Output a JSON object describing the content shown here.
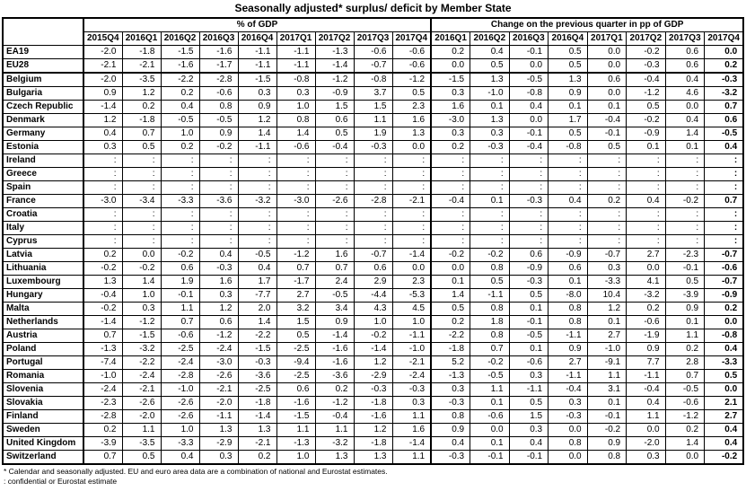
{
  "title": "Seasonally adjusted* surplus/ deficit by Member State",
  "table": {
    "corner": "",
    "groups": [
      {
        "label": "% of GDP",
        "columns": [
          "2015Q4",
          "2016Q1",
          "2016Q2",
          "2016Q3",
          "2016Q4",
          "2017Q1",
          "2017Q2",
          "2017Q3",
          "2017Q4"
        ]
      },
      {
        "label": "Change on the previous quarter in pp of GDP",
        "columns": [
          "2016Q1",
          "2016Q2",
          "2016Q3",
          "2016Q4",
          "2017Q1",
          "2017Q2",
          "2017Q3",
          "2017Q4"
        ]
      }
    ],
    "rows": [
      {
        "label": "EA19",
        "gdp": [
          "-2.0",
          "-1.8",
          "-1.5",
          "-1.6",
          "-1.1",
          "-1.1",
          "-1.3",
          "-0.6",
          "-0.6"
        ],
        "change": [
          "0.2",
          "0.4",
          "-0.1",
          "0.5",
          "0.0",
          "-0.2",
          "0.6",
          "0.0"
        ]
      },
      {
        "label": "EU28",
        "gdp": [
          "-2.1",
          "-2.1",
          "-1.6",
          "-1.7",
          "-1.1",
          "-1.1",
          "-1.4",
          "-0.7",
          "-0.6"
        ],
        "change": [
          "0.0",
          "0.5",
          "0.0",
          "0.5",
          "0.0",
          "-0.3",
          "0.6",
          "0.2"
        ]
      },
      {
        "label": "Belgium",
        "gdp": [
          "-2.0",
          "-3.5",
          "-2.2",
          "-2.8",
          "-1.5",
          "-0.8",
          "-1.2",
          "-0.8",
          "-1.2"
        ],
        "change": [
          "-1.5",
          "1.3",
          "-0.5",
          "1.3",
          "0.6",
          "-0.4",
          "0.4",
          "-0.3"
        ]
      },
      {
        "label": "Bulgaria",
        "gdp": [
          "0.9",
          "1.2",
          "0.2",
          "-0.6",
          "0.3",
          "0.3",
          "-0.9",
          "3.7",
          "0.5"
        ],
        "change": [
          "0.3",
          "-1.0",
          "-0.8",
          "0.9",
          "0.0",
          "-1.2",
          "4.6",
          "-3.2"
        ]
      },
      {
        "label": "Czech Republic",
        "gdp": [
          "-1.4",
          "0.2",
          "0.4",
          "0.8",
          "0.9",
          "1.0",
          "1.5",
          "1.5",
          "2.3"
        ],
        "change": [
          "1.6",
          "0.1",
          "0.4",
          "0.1",
          "0.1",
          "0.5",
          "0.0",
          "0.7"
        ]
      },
      {
        "label": "Denmark",
        "gdp": [
          "1.2",
          "-1.8",
          "-0.5",
          "-0.5",
          "1.2",
          "0.8",
          "0.6",
          "1.1",
          "1.6"
        ],
        "change": [
          "-3.0",
          "1.3",
          "0.0",
          "1.7",
          "-0.4",
          "-0.2",
          "0.4",
          "0.6"
        ]
      },
      {
        "label": "Germany",
        "gdp": [
          "0.4",
          "0.7",
          "1.0",
          "0.9",
          "1.4",
          "1.4",
          "0.5",
          "1.9",
          "1.3"
        ],
        "change": [
          "0.3",
          "0.3",
          "-0.1",
          "0.5",
          "-0.1",
          "-0.9",
          "1.4",
          "-0.5"
        ]
      },
      {
        "label": "Estonia",
        "gdp": [
          "0.3",
          "0.5",
          "0.2",
          "-0.2",
          "-1.1",
          "-0.6",
          "-0.4",
          "-0.3",
          "0.0"
        ],
        "change": [
          "0.2",
          "-0.3",
          "-0.4",
          "-0.8",
          "0.5",
          "0.1",
          "0.1",
          "0.4"
        ]
      },
      {
        "label": "Ireland",
        "gdp": [
          ":",
          ":",
          ":",
          ":",
          ":",
          ":",
          ":",
          ":",
          ":"
        ],
        "change": [
          ":",
          ":",
          ":",
          ":",
          ":",
          ":",
          ":",
          ":"
        ]
      },
      {
        "label": "Greece",
        "gdp": [
          ":",
          ":",
          ":",
          ":",
          ":",
          ":",
          ":",
          ":",
          ":"
        ],
        "change": [
          ":",
          ":",
          ":",
          ":",
          ":",
          ":",
          ":",
          ":"
        ]
      },
      {
        "label": "Spain",
        "gdp": [
          ":",
          ":",
          ":",
          ":",
          ":",
          ":",
          ":",
          ":",
          ":"
        ],
        "change": [
          ":",
          ":",
          ":",
          ":",
          ":",
          ":",
          ":",
          ":"
        ]
      },
      {
        "label": "France",
        "gdp": [
          "-3.0",
          "-3.4",
          "-3.3",
          "-3.6",
          "-3.2",
          "-3.0",
          "-2.6",
          "-2.8",
          "-2.1"
        ],
        "change": [
          "-0.4",
          "0.1",
          "-0.3",
          "0.4",
          "0.2",
          "0.4",
          "-0.2",
          "0.7"
        ]
      },
      {
        "label": "Croatia",
        "gdp": [
          ":",
          ":",
          ":",
          ":",
          ":",
          ":",
          ":",
          ":",
          ":"
        ],
        "change": [
          ":",
          ":",
          ":",
          ":",
          ":",
          ":",
          ":",
          ":"
        ]
      },
      {
        "label": "Italy",
        "gdp": [
          ":",
          ":",
          ":",
          ":",
          ":",
          ":",
          ":",
          ":",
          ":"
        ],
        "change": [
          ":",
          ":",
          ":",
          ":",
          ":",
          ":",
          ":",
          ":"
        ]
      },
      {
        "label": "Cyprus",
        "gdp": [
          ":",
          ":",
          ":",
          ":",
          ":",
          ":",
          ":",
          ":",
          ":"
        ],
        "change": [
          ":",
          ":",
          ":",
          ":",
          ":",
          ":",
          ":",
          ":"
        ]
      },
      {
        "label": "Latvia",
        "gdp": [
          "0.2",
          "0.0",
          "-0.2",
          "0.4",
          "-0.5",
          "-1.2",
          "1.6",
          "-0.7",
          "-1.4"
        ],
        "change": [
          "-0.2",
          "-0.2",
          "0.6",
          "-0.9",
          "-0.7",
          "2.7",
          "-2.3",
          "-0.7"
        ]
      },
      {
        "label": "Lithuania",
        "gdp": [
          "-0.2",
          "-0.2",
          "0.6",
          "-0.3",
          "0.4",
          "0.7",
          "0.7",
          "0.6",
          "0.0"
        ],
        "change": [
          "0.0",
          "0.8",
          "-0.9",
          "0.6",
          "0.3",
          "0.0",
          "-0.1",
          "-0.6"
        ]
      },
      {
        "label": "Luxembourg",
        "gdp": [
          "1.3",
          "1.4",
          "1.9",
          "1.6",
          "1.7",
          "-1.7",
          "2.4",
          "2.9",
          "2.3"
        ],
        "change": [
          "0.1",
          "0.5",
          "-0.3",
          "0.1",
          "-3.3",
          "4.1",
          "0.5",
          "-0.7"
        ]
      },
      {
        "label": "Hungary",
        "gdp": [
          "-0.4",
          "1.0",
          "-0.1",
          "0.3",
          "-7.7",
          "2.7",
          "-0.5",
          "-4.4",
          "-5.3"
        ],
        "change": [
          "1.4",
          "-1.1",
          "0.5",
          "-8.0",
          "10.4",
          "-3.2",
          "-3.9",
          "-0.9"
        ]
      },
      {
        "label": "Malta",
        "gdp": [
          "-0.2",
          "0.3",
          "1.1",
          "1.2",
          "2.0",
          "3.2",
          "3.4",
          "4.3",
          "4.5"
        ],
        "change": [
          "0.5",
          "0.8",
          "0.1",
          "0.8",
          "1.2",
          "0.2",
          "0.9",
          "0.2"
        ]
      },
      {
        "label": "Netherlands",
        "gdp": [
          "-1.4",
          "-1.2",
          "0.7",
          "0.6",
          "1.4",
          "1.5",
          "0.9",
          "1.0",
          "1.0"
        ],
        "change": [
          "0.2",
          "1.8",
          "-0.1",
          "0.8",
          "0.1",
          "-0.6",
          "0.1",
          "0.0"
        ]
      },
      {
        "label": "Austria",
        "gdp": [
          "0.7",
          "-1.5",
          "-0.6",
          "-1.2",
          "-2.2",
          "0.5",
          "-1.4",
          "-0.2",
          "-1.1"
        ],
        "change": [
          "-2.2",
          "0.8",
          "-0.5",
          "-1.1",
          "2.7",
          "-1.9",
          "1.1",
          "-0.8"
        ]
      },
      {
        "label": "Poland",
        "gdp": [
          "-1.3",
          "-3.2",
          "-2.5",
          "-2.4",
          "-1.5",
          "-2.5",
          "-1.6",
          "-1.4",
          "-1.0"
        ],
        "change": [
          "-1.8",
          "0.7",
          "0.1",
          "0.9",
          "-1.0",
          "0.9",
          "0.2",
          "0.4"
        ]
      },
      {
        "label": "Portugal",
        "gdp": [
          "-7.4",
          "-2.2",
          "-2.4",
          "-3.0",
          "-0.3",
          "-9.4",
          "-1.6",
          "1.2",
          "-2.1"
        ],
        "change": [
          "5.2",
          "-0.2",
          "-0.6",
          "2.7",
          "-9.1",
          "7.7",
          "2.8",
          "-3.3"
        ]
      },
      {
        "label": "Romania",
        "gdp": [
          "-1.0",
          "-2.4",
          "-2.8",
          "-2.6",
          "-3.6",
          "-2.5",
          "-3.6",
          "-2.9",
          "-2.4"
        ],
        "change": [
          "-1.3",
          "-0.5",
          "0.3",
          "-1.1",
          "1.1",
          "-1.1",
          "0.7",
          "0.5"
        ]
      },
      {
        "label": "Slovenia",
        "gdp": [
          "-2.4",
          "-2.1",
          "-1.0",
          "-2.1",
          "-2.5",
          "0.6",
          "0.2",
          "-0.3",
          "-0.3"
        ],
        "change": [
          "0.3",
          "1.1",
          "-1.1",
          "-0.4",
          "3.1",
          "-0.4",
          "-0.5",
          "0.0"
        ]
      },
      {
        "label": "Slovakia",
        "gdp": [
          "-2.3",
          "-2.6",
          "-2.6",
          "-2.0",
          "-1.8",
          "-1.6",
          "-1.2",
          "-1.8",
          "0.3"
        ],
        "change": [
          "-0.3",
          "0.1",
          "0.5",
          "0.3",
          "0.1",
          "0.4",
          "-0.6",
          "2.1"
        ]
      },
      {
        "label": "Finland",
        "gdp": [
          "-2.8",
          "-2.0",
          "-2.6",
          "-1.1",
          "-1.4",
          "-1.5",
          "-0.4",
          "-1.6",
          "1.1"
        ],
        "change": [
          "0.8",
          "-0.6",
          "1.5",
          "-0.3",
          "-0.1",
          "1.1",
          "-1.2",
          "2.7"
        ]
      },
      {
        "label": "Sweden",
        "gdp": [
          "0.2",
          "1.1",
          "1.0",
          "1.3",
          "1.3",
          "1.1",
          "1.1",
          "1.2",
          "1.6"
        ],
        "change": [
          "0.9",
          "0.0",
          "0.3",
          "0.0",
          "-0.2",
          "0.0",
          "0.2",
          "0.4"
        ]
      },
      {
        "label": "United Kingdom",
        "gdp": [
          "-3.9",
          "-3.5",
          "-3.3",
          "-2.9",
          "-2.1",
          "-1.3",
          "-3.2",
          "-1.8",
          "-1.4"
        ],
        "change": [
          "0.4",
          "0.1",
          "0.4",
          "0.8",
          "0.9",
          "-2.0",
          "1.4",
          "0.4"
        ]
      },
      {
        "label": "Switzerland",
        "gdp": [
          "0.7",
          "0.5",
          "0.4",
          "0.3",
          "0.2",
          "1.0",
          "1.3",
          "1.3",
          "1.1"
        ],
        "change": [
          "-0.3",
          "-0.1",
          "-0.1",
          "0.0",
          "0.8",
          "0.3",
          "0.0",
          "-0.2"
        ]
      }
    ]
  },
  "footnotes": [
    "* Calendar and seasonally adjusted. EU and euro area data are a combination of national and Eurostat estimates.",
    ": confidential or Eurostat estimate"
  ]
}
